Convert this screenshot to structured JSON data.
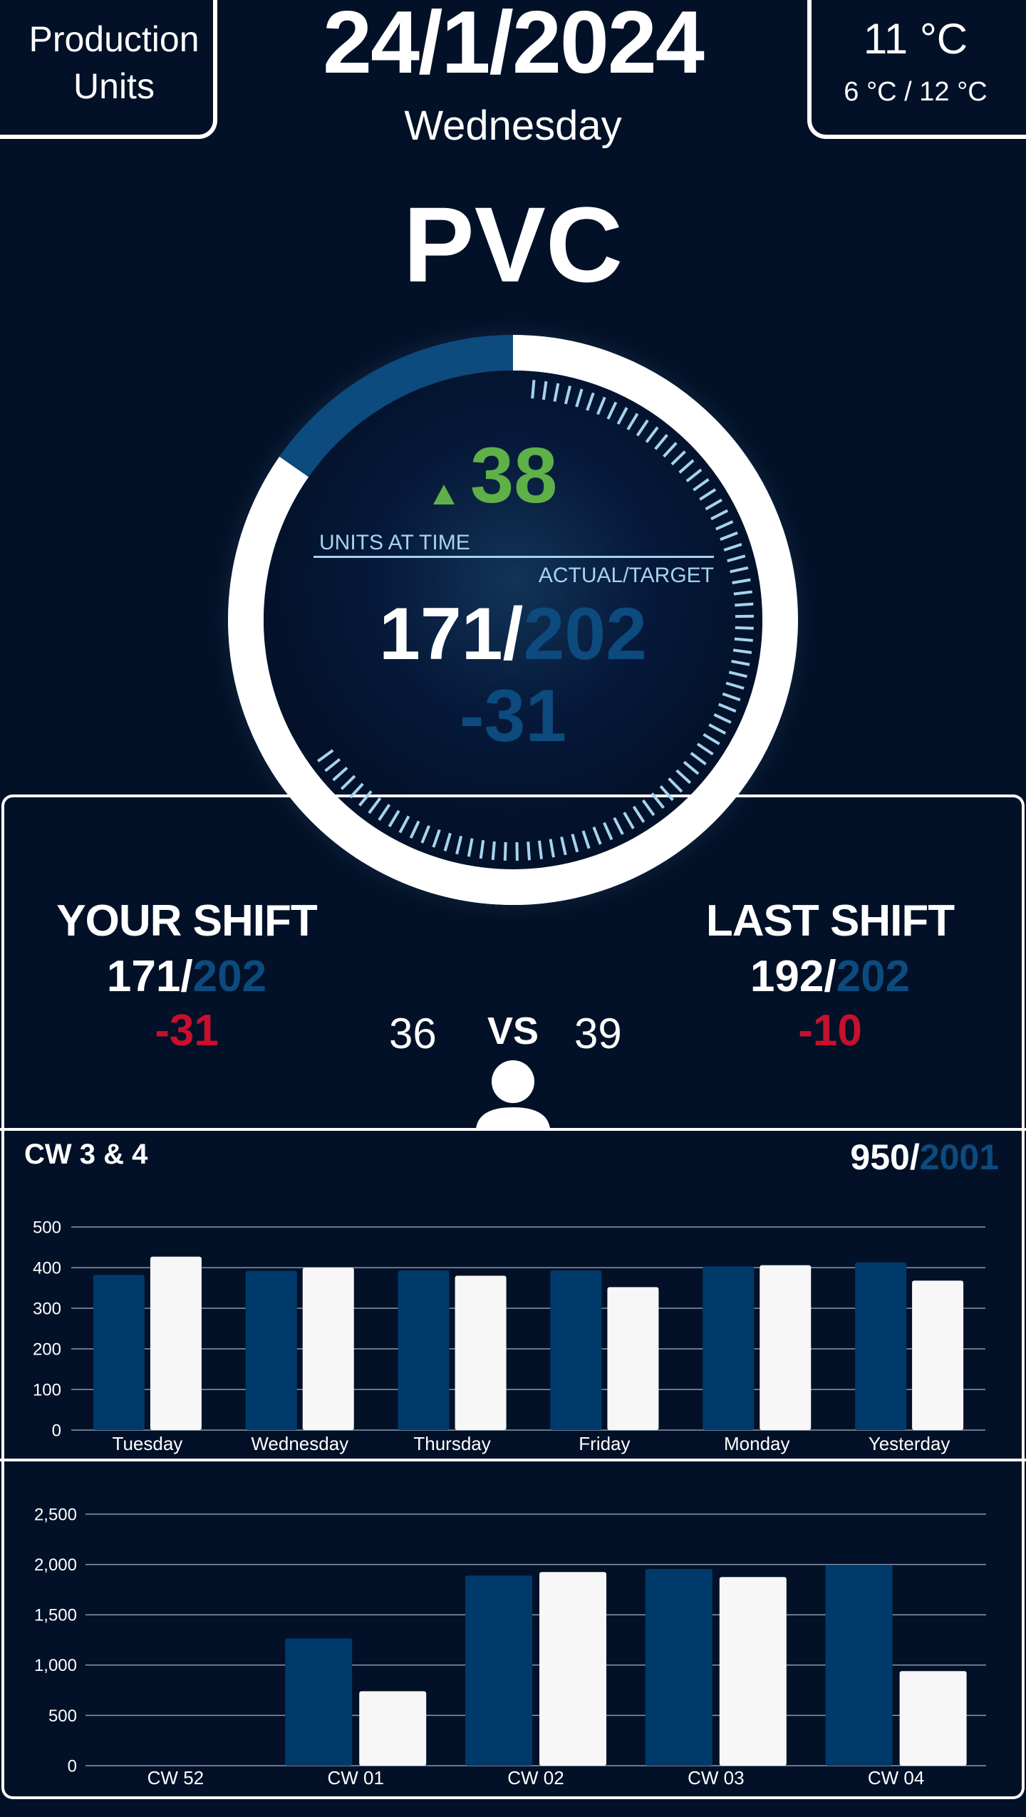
{
  "header": {
    "left_title_line1": "Production",
    "left_title_line2": "Units",
    "date": "24/1/2024",
    "weekday": "Wednesday",
    "temperature": "11 °C",
    "temp_low": "6 °C",
    "temp_separator": "/",
    "temp_high": "12 °C"
  },
  "product": "PVC",
  "gauge": {
    "units_at_time_value": "38",
    "units_at_time_label": "UNITS AT TIME",
    "actual_target_label": "ACTUAL/TARGET",
    "actual": "171",
    "target": "202",
    "separator": "/",
    "delta": "-31",
    "progress_fraction": 0.847,
    "colors": {
      "ring": "#ffffff",
      "shortfall": "#0d4a7e",
      "ticks": "#a6d3ee",
      "trend_up": "#5fb048"
    }
  },
  "shift": {
    "your_shift": {
      "title": "YOUR SHIFT",
      "actual": "171",
      "target": "202",
      "separator": "/",
      "delta": "-31"
    },
    "last_shift": {
      "title": "LAST SHIFT",
      "actual": "192",
      "target": "202",
      "separator": "/",
      "delta": "-10"
    },
    "vs_left": "36",
    "vs_label": "VS",
    "vs_right": "39",
    "icon": "person-icon"
  },
  "weekly": {
    "title": "CW 3 & 4",
    "total_actual": "950",
    "separator": "/",
    "total_target": "2001"
  },
  "chart_data": [
    {
      "type": "bar",
      "categories": [
        "Tuesday",
        "Wednesday",
        "Thursday",
        "Friday",
        "Monday",
        "Yesterday"
      ],
      "series": [
        {
          "values": [
            382,
            392,
            393,
            393,
            403,
            413
          ],
          "color": "#003a6b"
        },
        {
          "values": [
            427,
            400,
            380,
            352,
            406,
            368
          ],
          "color": "#f7f7f7"
        }
      ],
      "yticks": [
        0,
        100,
        200,
        300,
        400,
        500
      ],
      "ylim": [
        0,
        500
      ],
      "grid": true
    },
    {
      "type": "bar",
      "categories": [
        "CW 52",
        "CW 01",
        "CW 02",
        "CW 03",
        "CW 04"
      ],
      "series": [
        {
          "values": [
            0,
            1265,
            1890,
            1955,
            1995
          ],
          "color": "#003a6b"
        },
        {
          "values": [
            0,
            740,
            1925,
            1875,
            940
          ],
          "color": "#f7f7f7"
        }
      ],
      "yticks": [
        0,
        500,
        1000,
        1500,
        2000,
        2500
      ],
      "ytick_labels": [
        "0",
        "500",
        "1,000",
        "1,500",
        "2,000",
        "2,500"
      ],
      "ylim": [
        0,
        2500
      ],
      "grid": true
    }
  ]
}
